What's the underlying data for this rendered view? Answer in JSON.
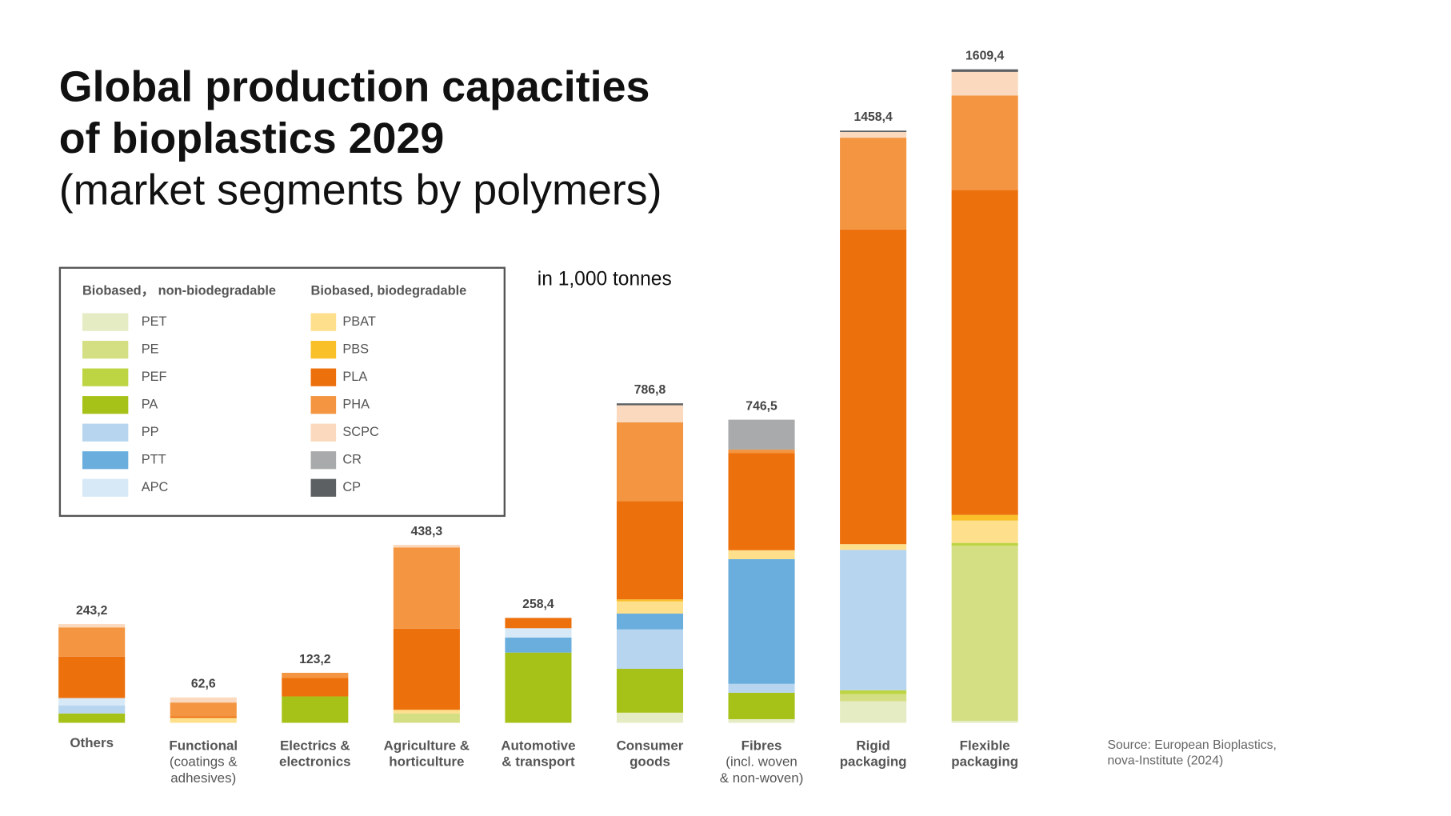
{
  "chart_data": {
    "type": "stacked_bar",
    "title": [
      "Global production capacities",
      "of bioplastics 2029"
    ],
    "subtitle": "(market segments by polymers)",
    "unit": "in 1,000 tonnes",
    "source": [
      "Source: European Bioplastics,",
      "nova-Institute (2024)"
    ],
    "categories": [
      {
        "label": [
          "Others"
        ],
        "note": []
      },
      {
        "label": [
          "Functional"
        ],
        "note": [
          "(coatings &",
          "adhesives)"
        ]
      },
      {
        "label": [
          "Electrics &",
          "electronics"
        ],
        "note": []
      },
      {
        "label": [
          "Agriculture &",
          "horticulture"
        ],
        "note": []
      },
      {
        "label": [
          "Automotive",
          "& transport"
        ],
        "note": []
      },
      {
        "label": [
          "Consumer",
          "goods"
        ],
        "note": []
      },
      {
        "label": [
          "Fibres"
        ],
        "note": [
          "(incl. woven",
          "& non-woven)"
        ]
      },
      {
        "label": [
          "Rigid",
          "packaging"
        ],
        "note": []
      },
      {
        "label": [
          "Flexible",
          "packaging"
        ],
        "note": []
      }
    ],
    "totals": [
      243.2,
      62.6,
      123.2,
      438.3,
      258.4,
      786.8,
      746.5,
      1458.4,
      1609.4
    ],
    "total_labels": [
      "243,2",
      "62,6",
      "123,2",
      "438,3",
      "258,4",
      "786,8",
      "746,5",
      "1458,4",
      "1609,4"
    ],
    "series_groups": [
      {
        "name": "Biobased， non-biodegradable",
        "series": [
          {
            "name": "PET",
            "color": "#e5ecc4",
            "values": [
              0,
              0,
              0,
              0,
              0,
              25,
              9,
              53,
              5
            ]
          },
          {
            "name": "PE",
            "color": "#d4df84",
            "values": [
              0,
              0,
              0,
              23,
              0,
              0,
              0,
              18,
              431
            ]
          },
          {
            "name": "PEF",
            "color": "#bdd443",
            "values": [
              0,
              0,
              0,
              0,
              0,
              0,
              0,
              9,
              7
            ]
          },
          {
            "name": "PA",
            "color": "#a6c218",
            "values": [
              23,
              0,
              65,
              0,
              173,
              108,
              65,
              0,
              0
            ]
          },
          {
            "name": "PP",
            "color": "#b7d5ee",
            "values": [
              20,
              0,
              0,
              0,
              0,
              97,
              22,
              346,
              0
            ]
          },
          {
            "name": "PTT",
            "color": "#6aaede",
            "values": [
              0,
              0,
              0,
              0,
              37,
              39,
              307,
              0,
              0
            ]
          },
          {
            "name": "APC",
            "color": "#d7e9f7",
            "values": [
              18,
              0,
              0,
              0,
              23,
              0,
              0,
              0,
              0
            ]
          }
        ]
      },
      {
        "name": "Biobased, biodegradable",
        "series": [
          {
            "name": "PBAT",
            "color": "#fddf8c",
            "values": [
              0,
              12,
              0,
              9,
              0,
              30,
              22,
              14,
              55
            ]
          },
          {
            "name": "PBS",
            "color": "#f9c02a",
            "values": [
              0,
              0,
              0,
              0,
              0,
              5,
              0,
              0,
              14
            ]
          },
          {
            "name": "PLA",
            "color": "#ec710d",
            "values": [
              102,
              4,
              46,
              200,
              25.4,
              242,
              239,
              775,
              800
            ]
          },
          {
            "name": "PHA",
            "color": "#f39541",
            "values": [
              72,
              34,
              12.2,
              200,
              0,
              194,
              9,
              226,
              233
            ]
          },
          {
            "name": "SCPC",
            "color": "#fad9be",
            "values": [
              8.2,
              12.6,
              0,
              6.3,
              0,
              42,
              0,
              14,
              58
            ]
          },
          {
            "name": "CR",
            "color": "#a8aaac",
            "values": [
              0,
              0,
              0,
              0,
              0,
              0,
              73.5,
              0,
              0
            ]
          },
          {
            "name": "CP",
            "color": "#5d6063",
            "values": [
              0,
              0,
              0,
              0,
              0,
              4.8,
              0,
              3.4,
              6.4
            ]
          }
        ]
      }
    ]
  }
}
